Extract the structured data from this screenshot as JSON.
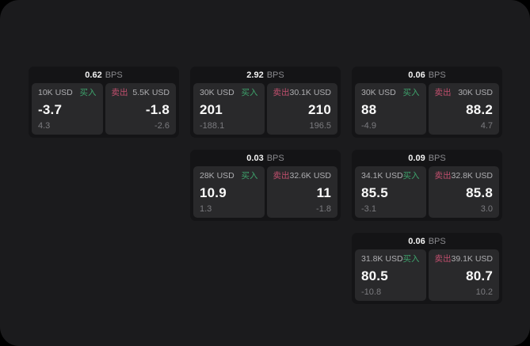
{
  "labels": {
    "bps": "BPS",
    "buy": "买入",
    "sell": "卖出"
  },
  "colors": {
    "buy_green": "#3ea36c",
    "sell_red": "#c14f6e",
    "page_bg": "#1b1b1d",
    "card_bg": "#141416",
    "panel_bg": "#29292b"
  },
  "cards": [
    {
      "bps": "0.62",
      "buy": {
        "size": "10K USD",
        "price": "-3.7",
        "delta": "4.3"
      },
      "sell": {
        "size": "5.5K USD",
        "price": "-1.8",
        "delta": "-2.6"
      }
    },
    {
      "bps": "2.92",
      "buy": {
        "size": "30K USD",
        "price": "201",
        "delta": "-188.1"
      },
      "sell": {
        "size": "30.1K USD",
        "price": "210",
        "delta": "196.5"
      }
    },
    {
      "bps": "0.06",
      "buy": {
        "size": "30K USD",
        "price": "88",
        "delta": "-4.9"
      },
      "sell": {
        "size": "30K USD",
        "price": "88.2",
        "delta": "4.7"
      }
    },
    {
      "bps": "0.03",
      "buy": {
        "size": "28K USD",
        "price": "10.9",
        "delta": "1.3"
      },
      "sell": {
        "size": "32.6K USD",
        "price": "11",
        "delta": "-1.8"
      }
    },
    {
      "bps": "0.09",
      "buy": {
        "size": "34.1K USD",
        "price": "85.5",
        "delta": "-3.1"
      },
      "sell": {
        "size": "32.8K USD",
        "price": "85.8",
        "delta": "3.0"
      }
    },
    {
      "bps": "0.06",
      "buy": {
        "size": "31.8K USD",
        "price": "80.5",
        "delta": "-10.8"
      },
      "sell": {
        "size": "39.1K USD",
        "price": "80.7",
        "delta": "10.2"
      }
    }
  ]
}
